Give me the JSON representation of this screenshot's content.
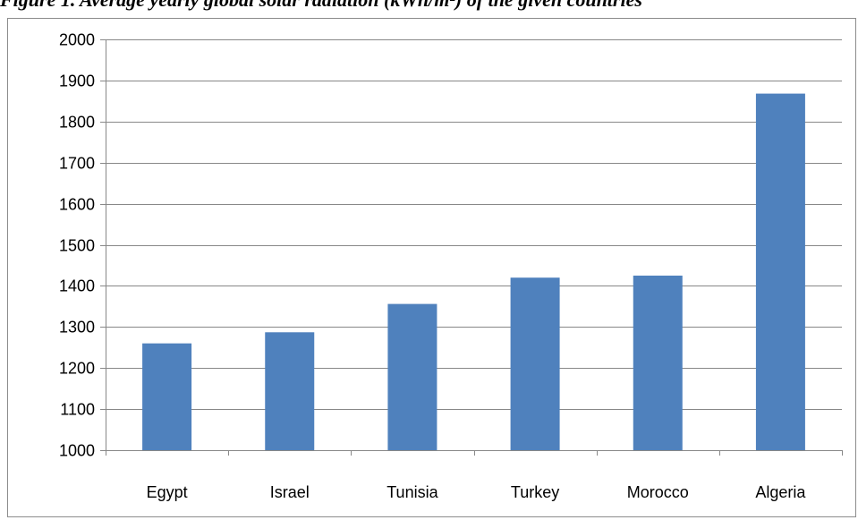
{
  "caption": "Figure 1. Average yearly global solar radiation (kWh/m²) of the given countries",
  "chart_data": {
    "type": "bar",
    "title": "",
    "xlabel": "",
    "ylabel": "",
    "categories": [
      "Egypt",
      "Israel",
      "Tunisia",
      "Turkey",
      "Morocco",
      "Algeria"
    ],
    "values": [
      1260,
      1287,
      1356,
      1420,
      1425,
      1868
    ],
    "ylim": [
      1000,
      2000
    ],
    "yticks": [
      1000,
      1100,
      1200,
      1300,
      1400,
      1500,
      1600,
      1700,
      1800,
      1900,
      2000
    ],
    "grid": true,
    "legend": "none",
    "bar_color": "#4f81bd",
    "grid_color": "#888888"
  }
}
